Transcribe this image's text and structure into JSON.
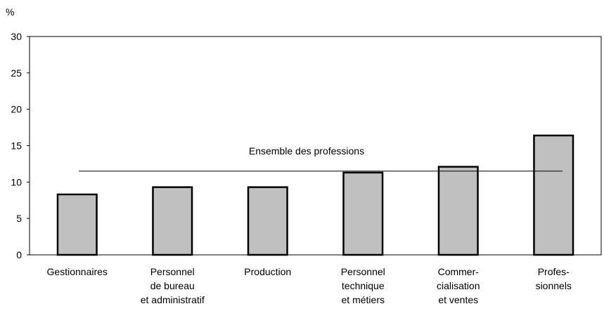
{
  "chart_data": {
    "type": "bar",
    "y_axis_label": "%",
    "categories": [
      [
        "Gestionnaires"
      ],
      [
        "Personnel",
        "de bureau",
        "et administratif"
      ],
      [
        "Production"
      ],
      [
        "Personnel",
        "technique",
        "et métiers"
      ],
      [
        "Commer-",
        "cialisation",
        "et ventes"
      ],
      [
        "Profes-",
        "sionnels"
      ]
    ],
    "values": [
      8.3,
      9.3,
      9.3,
      11.3,
      12.1,
      16.4
    ],
    "color": "#c0c0c0",
    "ylim": [
      0,
      30
    ],
    "yticks": [
      0,
      5,
      10,
      15,
      20,
      25,
      30
    ],
    "reference_line": {
      "label": "Ensemble des professions",
      "value": 11.5
    }
  }
}
